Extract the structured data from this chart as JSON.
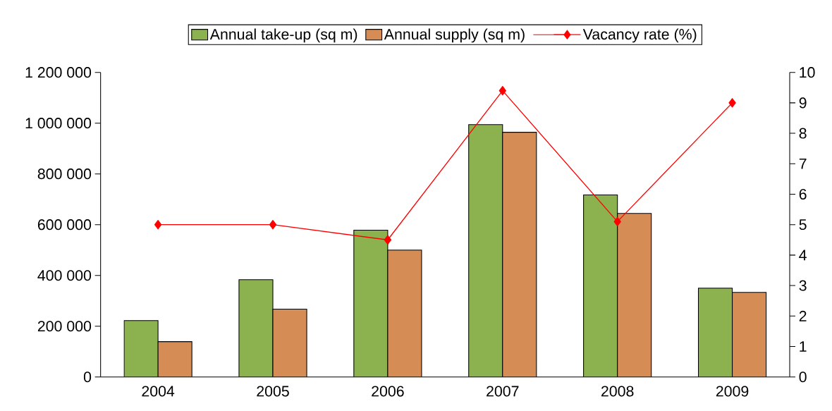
{
  "chart_data": {
    "type": "bar",
    "categories": [
      "2004",
      "2005",
      "2006",
      "2007",
      "2008",
      "2009"
    ],
    "series": [
      {
        "name": "Annual take-up (sq m)",
        "color": "#8cb24f",
        "values": [
          222000,
          383000,
          578000,
          994000,
          717000,
          350000
        ]
      },
      {
        "name": "Annual supply (sq m)",
        "color": "#d68d55",
        "values": [
          139000,
          267000,
          500000,
          964000,
          644000,
          333000
        ]
      },
      {
        "name": "Vacancy rate (%)",
        "type": "line",
        "axis": "y2",
        "marker": "diamond",
        "color": "#ff0000",
        "values": [
          5.0,
          5.0,
          4.5,
          9.4,
          5.1,
          9.0
        ]
      }
    ],
    "ylim": [
      0,
      1200000
    ],
    "yticks": [
      0,
      {
        "value": 200000,
        "label": "200 000"
      },
      {
        "value": 400000,
        "label": "400 000"
      },
      {
        "value": 600000,
        "label": "600 000"
      },
      {
        "value": 800000,
        "label": "800 000"
      },
      {
        "value": 1000000,
        "label": "1 000 000"
      },
      {
        "value": 1200000,
        "label": "1 200 000"
      }
    ],
    "y2lim": [
      0,
      10
    ],
    "y2ticks": [
      0,
      1,
      2,
      3,
      4,
      5,
      6,
      7,
      8,
      9,
      10
    ],
    "legend": "top"
  }
}
